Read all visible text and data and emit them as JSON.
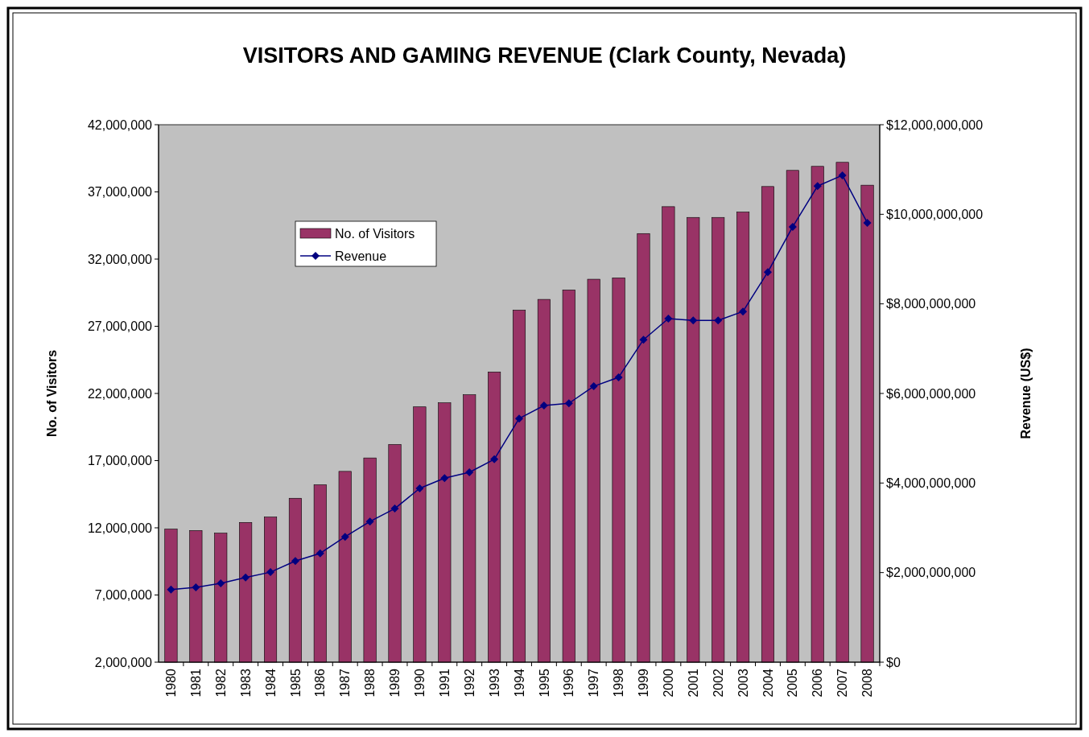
{
  "chart_data": {
    "type": "bar",
    "title": "VISITORS AND GAMING REVENUE (Clark County, Nevada)",
    "ylabel": "No. of Visitors",
    "y2label": "Revenue (US$)",
    "categories": [
      "1980",
      "1981",
      "1982",
      "1983",
      "1984",
      "1985",
      "1986",
      "1987",
      "1988",
      "1989",
      "1990",
      "1991",
      "1992",
      "1993",
      "1994",
      "1995",
      "1996",
      "1997",
      "1998",
      "1999",
      "2000",
      "2001",
      "2002",
      "2003",
      "2004",
      "2005",
      "2006",
      "2007",
      "2008"
    ],
    "series": [
      {
        "name": "No. of Visitors",
        "color": "#993366",
        "values": [
          11900000,
          11800000,
          11600000,
          12400000,
          12800000,
          14200000,
          15200000,
          16200000,
          17200000,
          18200000,
          21000000,
          21300000,
          21900000,
          23600000,
          28200000,
          29000000,
          29700000,
          30500000,
          30600000,
          33900000,
          35900000,
          35100000,
          35100000,
          35500000,
          37400000,
          38600000,
          38900000,
          39200000,
          37500000
        ]
      },
      {
        "name": "Revenue",
        "type": "line",
        "axis": "y2",
        "color": "#000080",
        "marker": "diamond",
        "values": [
          1620000000,
          1670000000,
          1760000000,
          1890000000,
          2010000000,
          2260000000,
          2430000000,
          2800000000,
          3140000000,
          3430000000,
          3880000000,
          4110000000,
          4240000000,
          4530000000,
          5440000000,
          5730000000,
          5780000000,
          6160000000,
          6360000000,
          7200000000,
          7670000000,
          7630000000,
          7630000000,
          7830000000,
          8710000000,
          9720000000,
          10630000000,
          10870000000,
          9810000000
        ]
      }
    ],
    "ylim": [
      2000000,
      42000000
    ],
    "yticks": [
      {
        "value": 2000000,
        "label": "2,000,000"
      },
      {
        "value": 7000000,
        "label": "7,000,000"
      },
      {
        "value": 12000000,
        "label": "12,000,000"
      },
      {
        "value": 17000000,
        "label": "17,000,000"
      },
      {
        "value": 22000000,
        "label": "22,000,000"
      },
      {
        "value": 27000000,
        "label": "27,000,000"
      },
      {
        "value": 32000000,
        "label": "32,000,000"
      },
      {
        "value": 37000000,
        "label": "37,000,000"
      },
      {
        "value": 42000000,
        "label": "42,000,000"
      }
    ],
    "y2lim": [
      0,
      12000000000
    ],
    "y2ticks": [
      {
        "value": 0,
        "label": "$0"
      },
      {
        "value": 2000000000,
        "label": "$2,000,000,000"
      },
      {
        "value": 4000000000,
        "label": "$4,000,000,000"
      },
      {
        "value": 6000000000,
        "label": "$6,000,000,000"
      },
      {
        "value": 8000000000,
        "label": "$8,000,000,000"
      },
      {
        "value": 10000000000,
        "label": "$10,000,000,000"
      },
      {
        "value": 12000000000,
        "label": "$12,000,000,000"
      }
    ],
    "legend": "top left"
  }
}
